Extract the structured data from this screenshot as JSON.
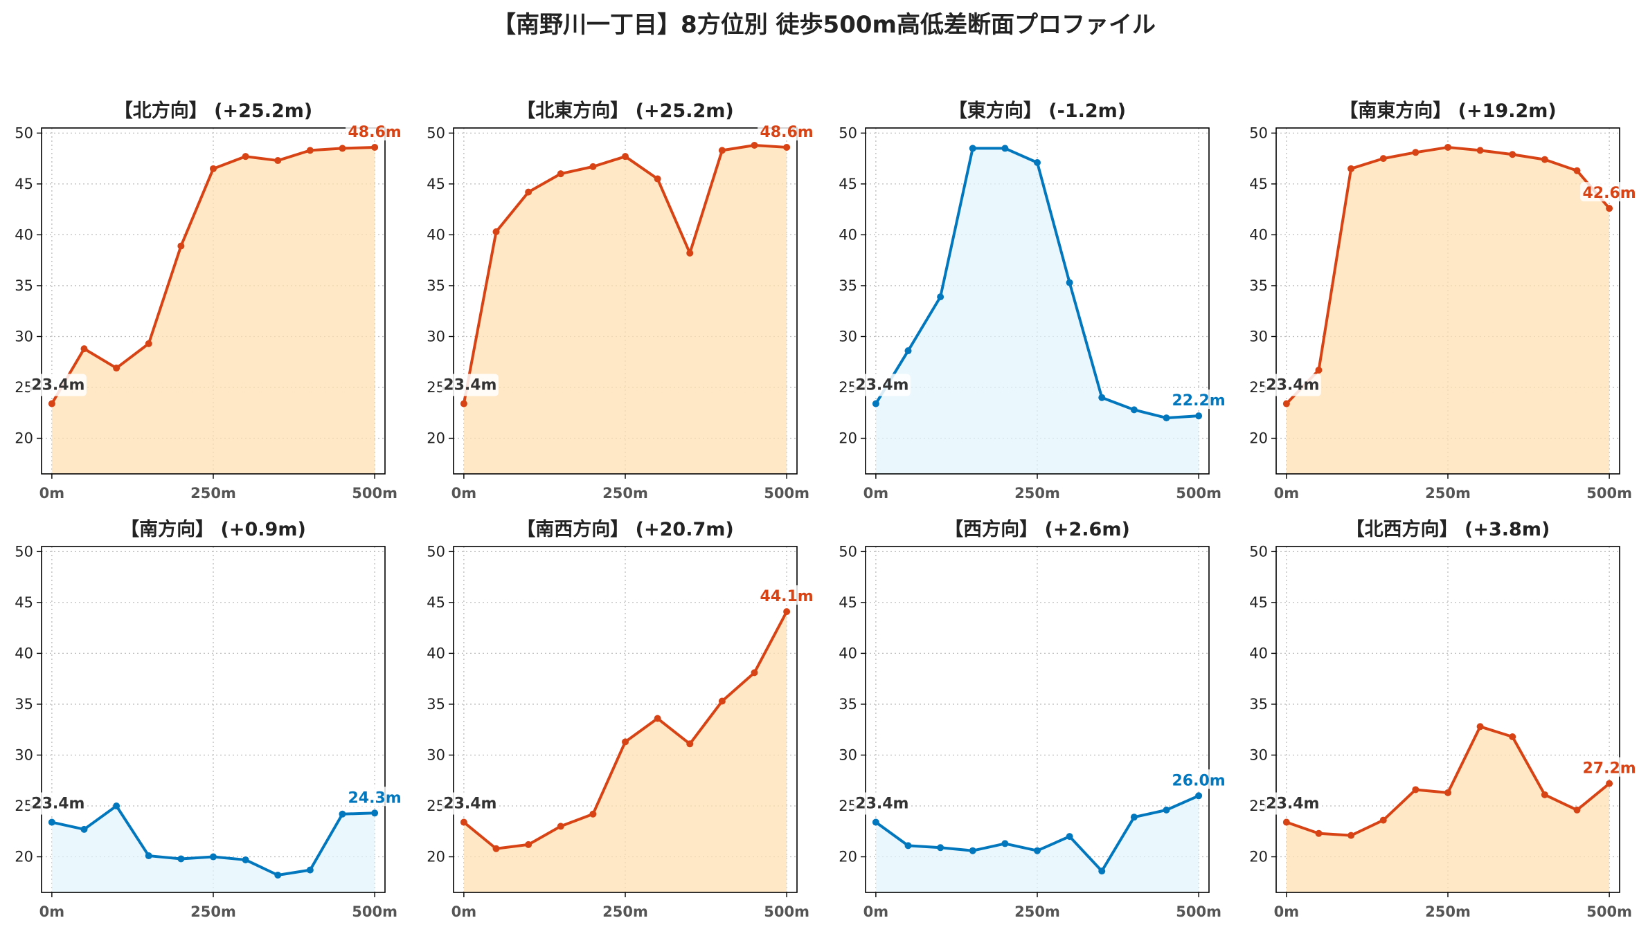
{
  "title": "【南野川一丁目】8方位別 徒歩500m高低差断面プロファイル",
  "colors": {
    "up_line": "#D84315",
    "up_fill": "#FFE0B2",
    "down_line": "#0277BD",
    "down_fill": "#E1F5FE",
    "grid": "#BBBBBB",
    "label": "#333333"
  },
  "chart_data": [
    {
      "type": "area",
      "title": "【北方向】 (+25.2m)",
      "trend": "up",
      "x": [
        0,
        50,
        100,
        150,
        200,
        250,
        300,
        350,
        400,
        450,
        500
      ],
      "values": [
        23.4,
        28.8,
        26.9,
        29.3,
        38.9,
        46.5,
        47.7,
        47.3,
        48.3,
        48.5,
        48.6
      ],
      "xticks": [
        "0m",
        "250m",
        "500m"
      ],
      "yticks": [
        "20",
        "25",
        "30",
        "35",
        "40",
        "45",
        "50"
      ],
      "ylim": [
        16.5,
        50.5
      ],
      "start_label": "23.4m",
      "end_label": "48.6m",
      "grid": true
    },
    {
      "type": "area",
      "title": "【北東方向】 (+25.2m)",
      "trend": "up",
      "x": [
        0,
        50,
        100,
        150,
        200,
        250,
        300,
        350,
        400,
        450,
        500
      ],
      "values": [
        23.4,
        40.3,
        44.2,
        46.0,
        46.7,
        47.7,
        45.5,
        38.2,
        48.3,
        48.8,
        48.6
      ],
      "xticks": [
        "0m",
        "250m",
        "500m"
      ],
      "yticks": [
        "20",
        "25",
        "30",
        "35",
        "40",
        "45",
        "50"
      ],
      "ylim": [
        16.5,
        50.5
      ],
      "start_label": "23.4m",
      "end_label": "48.6m",
      "grid": true
    },
    {
      "type": "area",
      "title": "【東方向】 (-1.2m)",
      "trend": "down",
      "x": [
        0,
        50,
        100,
        150,
        200,
        250,
        300,
        350,
        400,
        450,
        500
      ],
      "values": [
        23.4,
        28.6,
        33.9,
        48.5,
        48.5,
        47.1,
        35.3,
        24.0,
        22.8,
        22.0,
        22.2
      ],
      "xticks": [
        "0m",
        "250m",
        "500m"
      ],
      "yticks": [
        "20",
        "25",
        "30",
        "35",
        "40",
        "45",
        "50"
      ],
      "ylim": [
        16.5,
        50.5
      ],
      "start_label": "23.4m",
      "end_label": "22.2m",
      "grid": true
    },
    {
      "type": "area",
      "title": "【南東方向】 (+19.2m)",
      "trend": "up",
      "x": [
        0,
        50,
        100,
        150,
        200,
        250,
        300,
        350,
        400,
        450,
        500
      ],
      "values": [
        23.4,
        26.7,
        46.5,
        47.5,
        48.1,
        48.6,
        48.3,
        47.9,
        47.4,
        46.3,
        42.6
      ],
      "xticks": [
        "0m",
        "250m",
        "500m"
      ],
      "yticks": [
        "20",
        "25",
        "30",
        "35",
        "40",
        "45",
        "50"
      ],
      "ylim": [
        16.5,
        50.5
      ],
      "start_label": "23.4m",
      "end_label": "42.6m",
      "grid": true
    },
    {
      "type": "area",
      "title": "【南方向】 (+0.9m)",
      "trend": "down",
      "x": [
        0,
        50,
        100,
        150,
        200,
        250,
        300,
        350,
        400,
        450,
        500
      ],
      "values": [
        23.4,
        22.7,
        25.0,
        20.1,
        19.8,
        20.0,
        19.7,
        18.2,
        18.7,
        24.2,
        24.3
      ],
      "xticks": [
        "0m",
        "250m",
        "500m"
      ],
      "yticks": [
        "20",
        "25",
        "30",
        "35",
        "40",
        "45",
        "50"
      ],
      "ylim": [
        16.5,
        50.5
      ],
      "start_label": "23.4m",
      "end_label": "24.3m",
      "grid": true
    },
    {
      "type": "area",
      "title": "【南西方向】 (+20.7m)",
      "trend": "up",
      "x": [
        0,
        50,
        100,
        150,
        200,
        250,
        300,
        350,
        400,
        450,
        500
      ],
      "values": [
        23.4,
        20.8,
        21.2,
        23.0,
        24.2,
        31.3,
        33.6,
        31.1,
        35.3,
        38.1,
        44.1
      ],
      "xticks": [
        "0m",
        "250m",
        "500m"
      ],
      "yticks": [
        "20",
        "25",
        "30",
        "35",
        "40",
        "45",
        "50"
      ],
      "ylim": [
        16.5,
        50.5
      ],
      "start_label": "23.4m",
      "end_label": "44.1m",
      "grid": true
    },
    {
      "type": "area",
      "title": "【西方向】 (+2.6m)",
      "trend": "down",
      "x": [
        0,
        50,
        100,
        150,
        200,
        250,
        300,
        350,
        400,
        450,
        500
      ],
      "values": [
        23.4,
        21.1,
        20.9,
        20.6,
        21.3,
        20.6,
        22.0,
        18.6,
        23.9,
        24.6,
        26.0
      ],
      "xticks": [
        "0m",
        "250m",
        "500m"
      ],
      "yticks": [
        "20",
        "25",
        "30",
        "35",
        "40",
        "45",
        "50"
      ],
      "ylim": [
        16.5,
        50.5
      ],
      "start_label": "23.4m",
      "end_label": "26.0m",
      "grid": true
    },
    {
      "type": "area",
      "title": "【北西方向】 (+3.8m)",
      "trend": "up",
      "x": [
        0,
        50,
        100,
        150,
        200,
        250,
        300,
        350,
        400,
        450,
        500
      ],
      "values": [
        23.4,
        22.3,
        22.1,
        23.6,
        26.6,
        26.3,
        32.8,
        31.8,
        26.1,
        24.6,
        27.2
      ],
      "xticks": [
        "0m",
        "250m",
        "500m"
      ],
      "yticks": [
        "20",
        "25",
        "30",
        "35",
        "40",
        "45",
        "50"
      ],
      "ylim": [
        16.5,
        50.5
      ],
      "start_label": "23.4m",
      "end_label": "27.2m",
      "grid": true
    }
  ]
}
